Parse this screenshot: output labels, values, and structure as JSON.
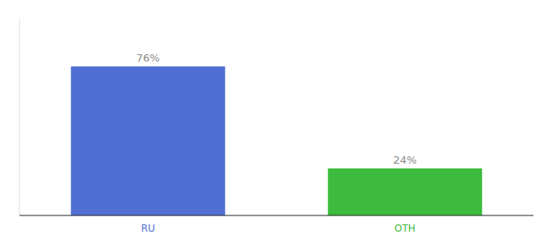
{
  "chart_data": {
    "type": "bar",
    "categories": [
      "RU",
      "OTH"
    ],
    "values": [
      76,
      24
    ],
    "value_labels": [
      "76%",
      "24%"
    ],
    "colors": [
      "#4F6FD4",
      "#3dbb3d"
    ],
    "ylim": [
      0,
      100
    ],
    "data_labels": true,
    "tick_labels": "x",
    "grid": false
  }
}
